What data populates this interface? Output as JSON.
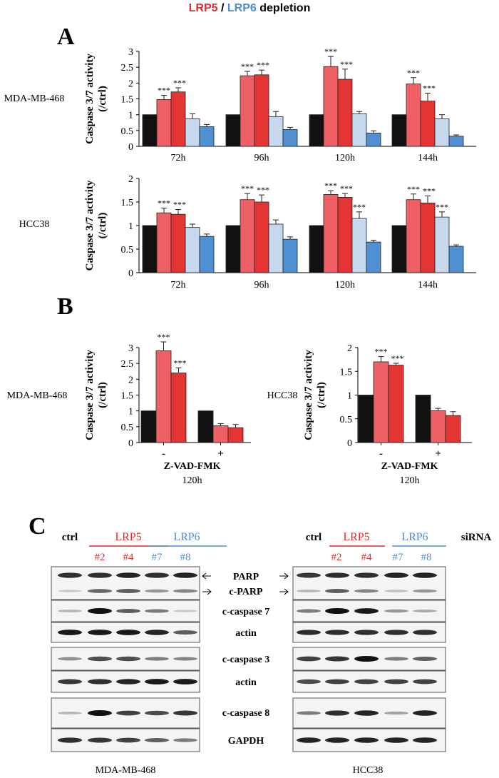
{
  "header": {
    "lrp5": "LRP5",
    "sep": " / ",
    "lrp6": "LRP6",
    "rest": " depletion"
  },
  "colors": {
    "ctrl": "#111111",
    "lrp5_a": "#ee6065",
    "lrp5_b": "#e43434",
    "lrp6_a": "#c5d8ee",
    "lrp6_b": "#4f8fd2",
    "lrp5_text": "#e32b2b",
    "lrp6_text": "#4c8fd6"
  },
  "panels": {
    "a": "A",
    "b": "B",
    "c": "C"
  },
  "chart_data": [
    {
      "id": "A-top",
      "type": "bar",
      "row_label": "MDA-MB-468",
      "ylabel": [
        "Caspase 3/7 activity",
        "(/ctrl)"
      ],
      "ylim": [
        0,
        3
      ],
      "yticks": [
        "0",
        "0.5",
        "1",
        "1.5",
        "2",
        "2.5",
        "3"
      ],
      "categories": [
        "72h",
        "96h",
        "120h",
        "144h"
      ],
      "series": [
        {
          "name": "ctrl",
          "values": [
            1,
            1,
            1,
            1
          ],
          "err": [
            0,
            0,
            0,
            0
          ],
          "sig": [
            "",
            "",
            "",
            ""
          ]
        },
        {
          "name": "LRP5 #2",
          "values": [
            1.48,
            2.23,
            2.52,
            1.97
          ],
          "err": [
            0.13,
            0.14,
            0.32,
            0.2
          ],
          "sig": [
            "***",
            "***",
            "***",
            "***"
          ]
        },
        {
          "name": "LRP5 #4",
          "values": [
            1.72,
            2.26,
            2.12,
            1.43
          ],
          "err": [
            0.13,
            0.15,
            0.32,
            0.25
          ],
          "sig": [
            "***",
            "***",
            "***",
            "***"
          ]
        },
        {
          "name": "LRP6 #7",
          "values": [
            0.87,
            0.94,
            1.03,
            0.87
          ],
          "err": [
            0.16,
            0.16,
            0.07,
            0.13
          ],
          "sig": [
            "",
            "",
            "",
            ""
          ]
        },
        {
          "name": "LRP6 #8",
          "values": [
            0.62,
            0.53,
            0.42,
            0.32
          ],
          "err": [
            0.07,
            0.07,
            0.07,
            0.04
          ],
          "sig": [
            "",
            "",
            "",
            ""
          ]
        }
      ]
    },
    {
      "id": "A-bottom",
      "type": "bar",
      "row_label": "HCC38",
      "ylabel": [
        "Caspase 3/7 activity",
        "(/ctrl)"
      ],
      "ylim": [
        0,
        2
      ],
      "yticks": [
        "0",
        "0.5",
        "1",
        "1.5",
        "2"
      ],
      "categories": [
        "72h",
        "96h",
        "120h",
        "144h"
      ],
      "series": [
        {
          "name": "ctrl",
          "values": [
            1,
            1,
            1,
            1
          ],
          "err": [
            0,
            0,
            0,
            0
          ],
          "sig": [
            "",
            "",
            "",
            ""
          ]
        },
        {
          "name": "LRP5 #2",
          "values": [
            1.27,
            1.55,
            1.66,
            1.55
          ],
          "err": [
            0.1,
            0.13,
            0.08,
            0.12
          ],
          "sig": [
            "***",
            "***",
            "***",
            "***"
          ]
        },
        {
          "name": "LRP5 #4",
          "values": [
            1.24,
            1.5,
            1.6,
            1.48
          ],
          "err": [
            0.1,
            0.15,
            0.08,
            0.15
          ],
          "sig": [
            "***",
            "***",
            "***",
            "***"
          ]
        },
        {
          "name": "LRP6 #7",
          "values": [
            0.96,
            1.03,
            1.15,
            1.18
          ],
          "err": [
            0.07,
            0.09,
            0.14,
            0.11
          ],
          "sig": [
            "",
            "",
            "***",
            "***"
          ]
        },
        {
          "name": "LRP6 #8",
          "values": [
            0.77,
            0.71,
            0.65,
            0.56
          ],
          "err": [
            0.05,
            0.05,
            0.04,
            0.03
          ],
          "sig": [
            "",
            "",
            "",
            ""
          ]
        }
      ]
    },
    {
      "id": "B-left",
      "type": "bar",
      "row_label": "MDA-MB-468",
      "ylabel": [
        "Caspase 3/7 activity",
        "(/ctrl)"
      ],
      "ylim": [
        0,
        3
      ],
      "yticks": [
        "0",
        "0.5",
        "1",
        "1.5",
        "2",
        "2.5",
        "3"
      ],
      "categories": [
        "-",
        "+"
      ],
      "xlabel": "Z-VAD-FMK",
      "xsub": "120h",
      "series": [
        {
          "name": "ctrl",
          "values": [
            1,
            1
          ],
          "err": [
            0,
            0
          ],
          "sig": [
            "",
            ""
          ]
        },
        {
          "name": "LRP5 #2",
          "values": [
            2.9,
            0.53
          ],
          "err": [
            0.28,
            0.07
          ],
          "sig": [
            "***",
            ""
          ]
        },
        {
          "name": "LRP5 #4",
          "values": [
            2.2,
            0.47
          ],
          "err": [
            0.16,
            0.1
          ],
          "sig": [
            "***",
            ""
          ]
        }
      ]
    },
    {
      "id": "B-right",
      "type": "bar",
      "row_label": "HCC38",
      "ylabel": [
        "Caspase 3/7 activity",
        "(/ctrl)"
      ],
      "ylim": [
        0,
        2
      ],
      "yticks": [
        "0",
        "0.5",
        "1",
        "1.5",
        "2"
      ],
      "categories": [
        "-",
        "+"
      ],
      "xlabel": "Z-VAD-FMK",
      "xsub": "120h",
      "series": [
        {
          "name": "ctrl",
          "values": [
            1,
            1
          ],
          "err": [
            0,
            0
          ],
          "sig": [
            "",
            ""
          ]
        },
        {
          "name": "LRP5 #2",
          "values": [
            1.7,
            0.67
          ],
          "err": [
            0.11,
            0.05
          ],
          "sig": [
            "***",
            ""
          ]
        },
        {
          "name": "LRP5 #4",
          "values": [
            1.63,
            0.57
          ],
          "err": [
            0.04,
            0.08
          ],
          "sig": [
            "***",
            ""
          ]
        }
      ]
    }
  ],
  "blot": {
    "ctrl": "ctrl",
    "lrp5": "LRP5",
    "lrp6": "LRP6",
    "si2": "#2",
    "si4": "#4",
    "si7": "#7",
    "si8": "#8",
    "sirna": "siRNA",
    "left_cell": "MDA-MB-468",
    "right_cell": "HCC38",
    "labels": {
      "parp": "PARP",
      "cparp": "c-PARP",
      "casp7": "c-caspase 7",
      "actin1": "actin",
      "casp3": "c-caspase 3",
      "actin2": "actin",
      "casp8": "c-caspase 8",
      "gapdh": "GAPDH"
    },
    "left_intensity": {
      "parp": [
        0.85,
        0.85,
        0.9,
        0.85,
        0.9
      ],
      "cparp": [
        0.05,
        0.55,
        0.6,
        0.3,
        0.4
      ],
      "casp7": [
        0.15,
        1.0,
        0.6,
        0.45,
        0.05
      ],
      "actin1": [
        0.95,
        0.95,
        0.95,
        0.9,
        0.6
      ],
      "casp3": [
        0.35,
        0.7,
        0.7,
        0.45,
        0.4
      ],
      "actin2": [
        0.8,
        0.85,
        0.9,
        0.95,
        0.95
      ],
      "casp8": [
        0.15,
        1.0,
        0.75,
        0.7,
        0.8
      ],
      "gapdh": [
        0.85,
        0.8,
        0.75,
        0.6,
        0.45
      ]
    },
    "right_intensity": {
      "parp": [
        0.8,
        0.85,
        0.85,
        0.9,
        0.9
      ],
      "cparp": [
        0.15,
        0.6,
        0.4,
        0.1,
        0.3
      ],
      "casp7": [
        0.45,
        1.0,
        0.95,
        0.3,
        0.2
      ],
      "actin1": [
        0.85,
        0.85,
        0.85,
        0.85,
        0.85
      ],
      "casp3": [
        0.75,
        0.8,
        1.0,
        0.45,
        0.6
      ],
      "actin2": [
        0.7,
        0.75,
        0.75,
        0.75,
        0.75
      ],
      "casp8": [
        0.45,
        0.85,
        0.9,
        0.25,
        0.9
      ],
      "gapdh": [
        0.9,
        0.9,
        0.9,
        0.9,
        0.9
      ]
    }
  }
}
